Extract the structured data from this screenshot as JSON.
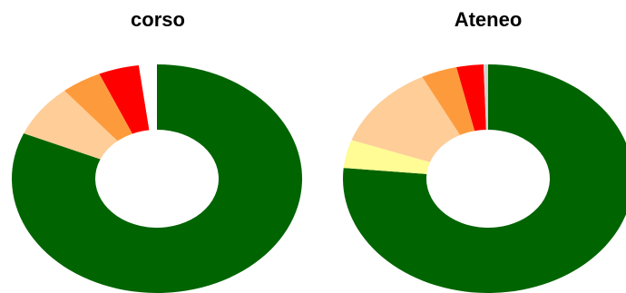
{
  "chart_data": [
    {
      "type": "pie",
      "title": "corso",
      "slices": [
        {
          "color": "#006400",
          "value": 81.5
        },
        {
          "color": "#fecd98",
          "value": 7.5
        },
        {
          "color": "#fd9b3c",
          "value": 4.5
        },
        {
          "color": "#ff0000",
          "value": 4.5
        },
        {
          "color": "#ffffff",
          "value": 2.0
        }
      ]
    },
    {
      "type": "pie",
      "title": "Ateneo",
      "slices": [
        {
          "color": "#006400",
          "value": 76.5
        },
        {
          "color": "#fffb95",
          "value": 4.0
        },
        {
          "color": "#fecd98",
          "value": 12.0
        },
        {
          "color": "#fd9b3c",
          "value": 4.0
        },
        {
          "color": "#ff0000",
          "value": 3.0
        },
        {
          "color": "#d3d3d3",
          "value": 0.5
        }
      ]
    }
  ]
}
